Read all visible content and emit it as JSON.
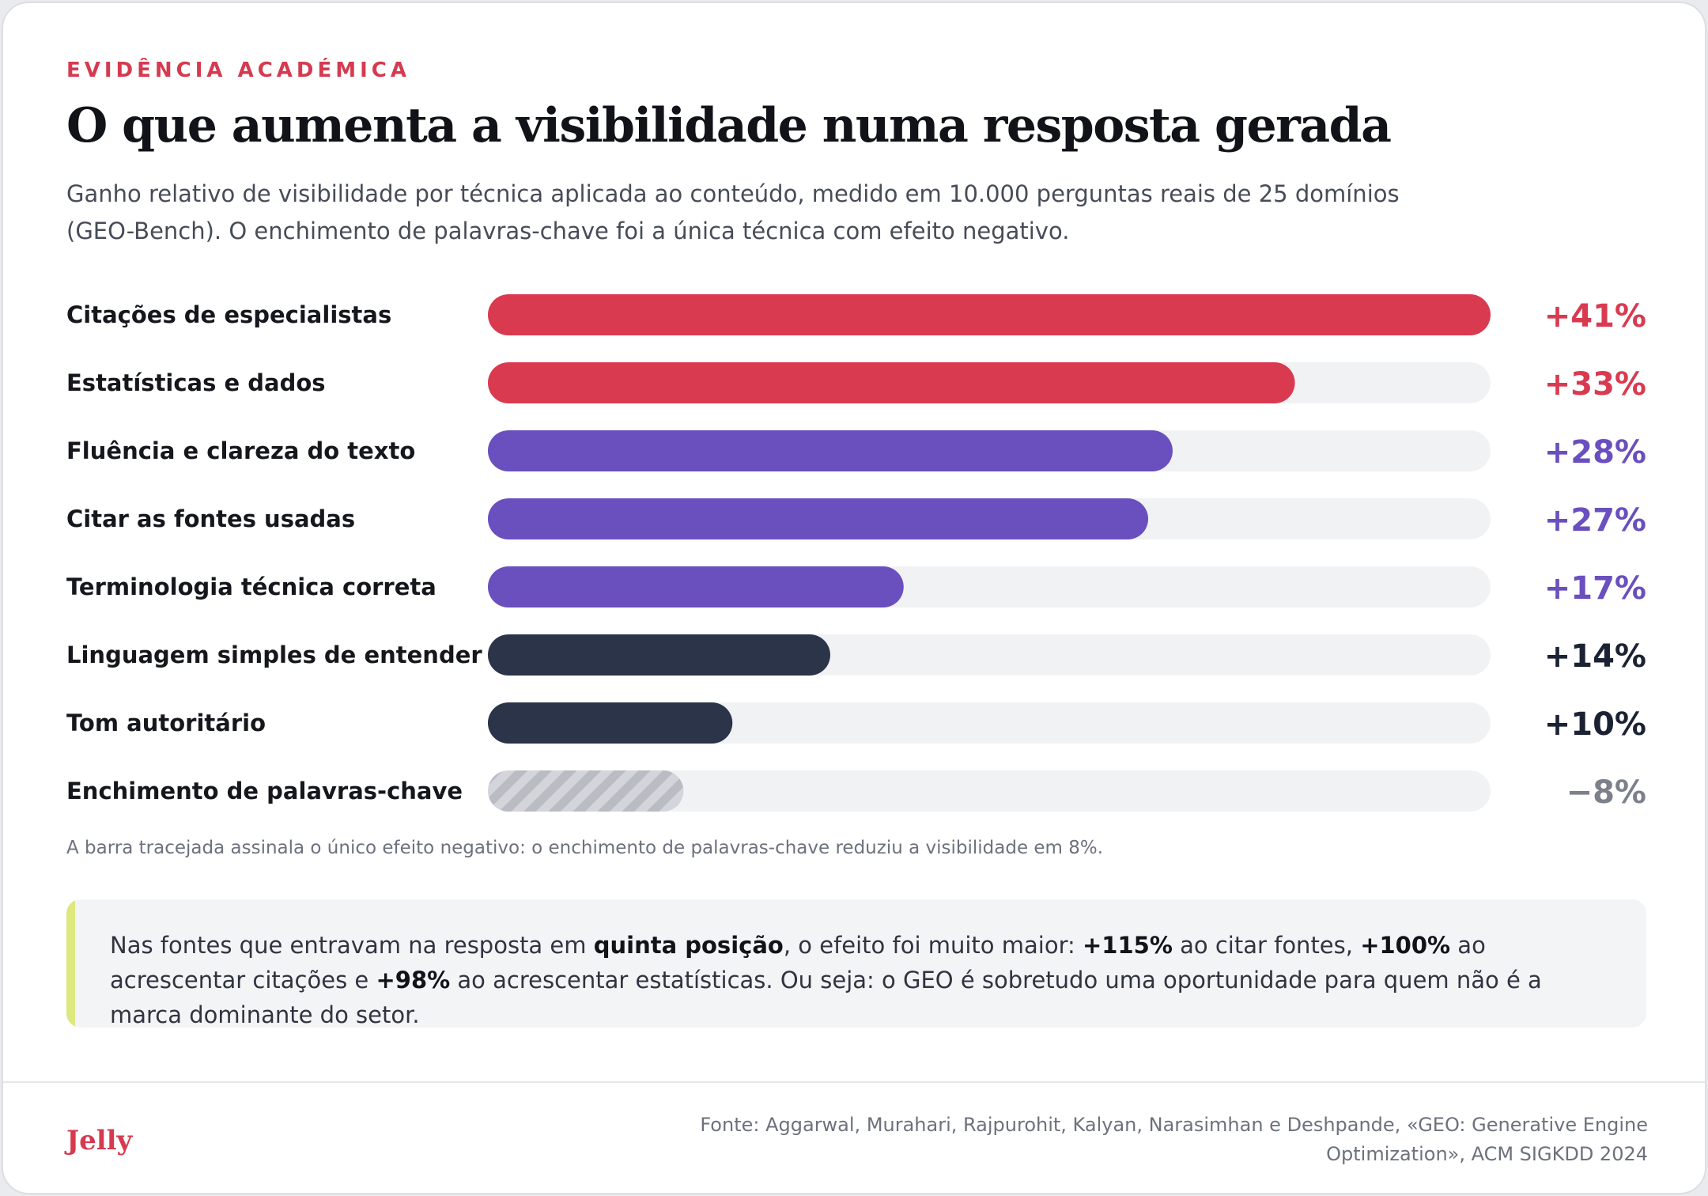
{
  "header": {
    "eyebrow": "EVIDÊNCIA ACADÉMICA",
    "title": "O que aumenta a visibilidade numa resposta gerada",
    "subtitle": "Ganho relativo de visibilidade por técnica aplicada ao conteúdo, medido em 10.000 perguntas reais de 25 domínios (GEO-Bench). O enchimento de palavras-chave foi a única técnica com efeito negativo."
  },
  "chart_data": {
    "type": "bar",
    "orientation": "horizontal",
    "categories": [
      "Citações de especialistas",
      "Estatísticas e dados",
      "Fluência e clareza do texto",
      "Citar as fontes usadas",
      "Terminologia técnica correta",
      "Linguagem simples de entender",
      "Tom autoritário",
      "Enchimento de palavras-chave"
    ],
    "values": [
      41,
      33,
      28,
      27,
      17,
      14,
      10,
      -8
    ],
    "value_labels": [
      "+41%",
      "+33%",
      "+28%",
      "+27%",
      "+17%",
      "+14%",
      "+10%",
      "−8%"
    ],
    "colors": [
      "#d93a50",
      "#d93a50",
      "#6a4fbf",
      "#6a4fbf",
      "#6a4fbf",
      "#2b3448",
      "#2b3448",
      "hatched-grey"
    ],
    "label_colors": [
      "#d93a50",
      "#d93a50",
      "#6a4fbf",
      "#6a4fbf",
      "#6a4fbf",
      "#1b2233",
      "#1b2233",
      "#7c808b"
    ],
    "xlim": [
      0,
      41
    ],
    "unit": "%",
    "legend": "none",
    "grid": false,
    "note": "A barra tracejada assinala o único efeito negativo: o enchimento de palavras-chave reduziu a visibilidade em 8%."
  },
  "callout": {
    "t1": "Nas fontes que entravam na resposta em ",
    "b1": "quinta posição",
    "t2": ", o efeito foi muito maior: ",
    "b2": "+115%",
    "t3": " ao citar fontes, ",
    "b3": "+100%",
    "t4": " ao acrescentar citações e ",
    "b4": "+98%",
    "t5": " ao acrescentar estatísticas. Ou seja: o GEO é sobretudo uma oportunidade para quem não é a marca dominante do setor.",
    "accent_color": "#dde87e"
  },
  "footer": {
    "logo": "Jelly",
    "source": "Fonte: Aggarwal, Murahari, Rajpurohit, Kalyan, Narasimhan e Deshpande, «GEO: Generative Engine Optimization», ACM SIGKDD 2024"
  }
}
